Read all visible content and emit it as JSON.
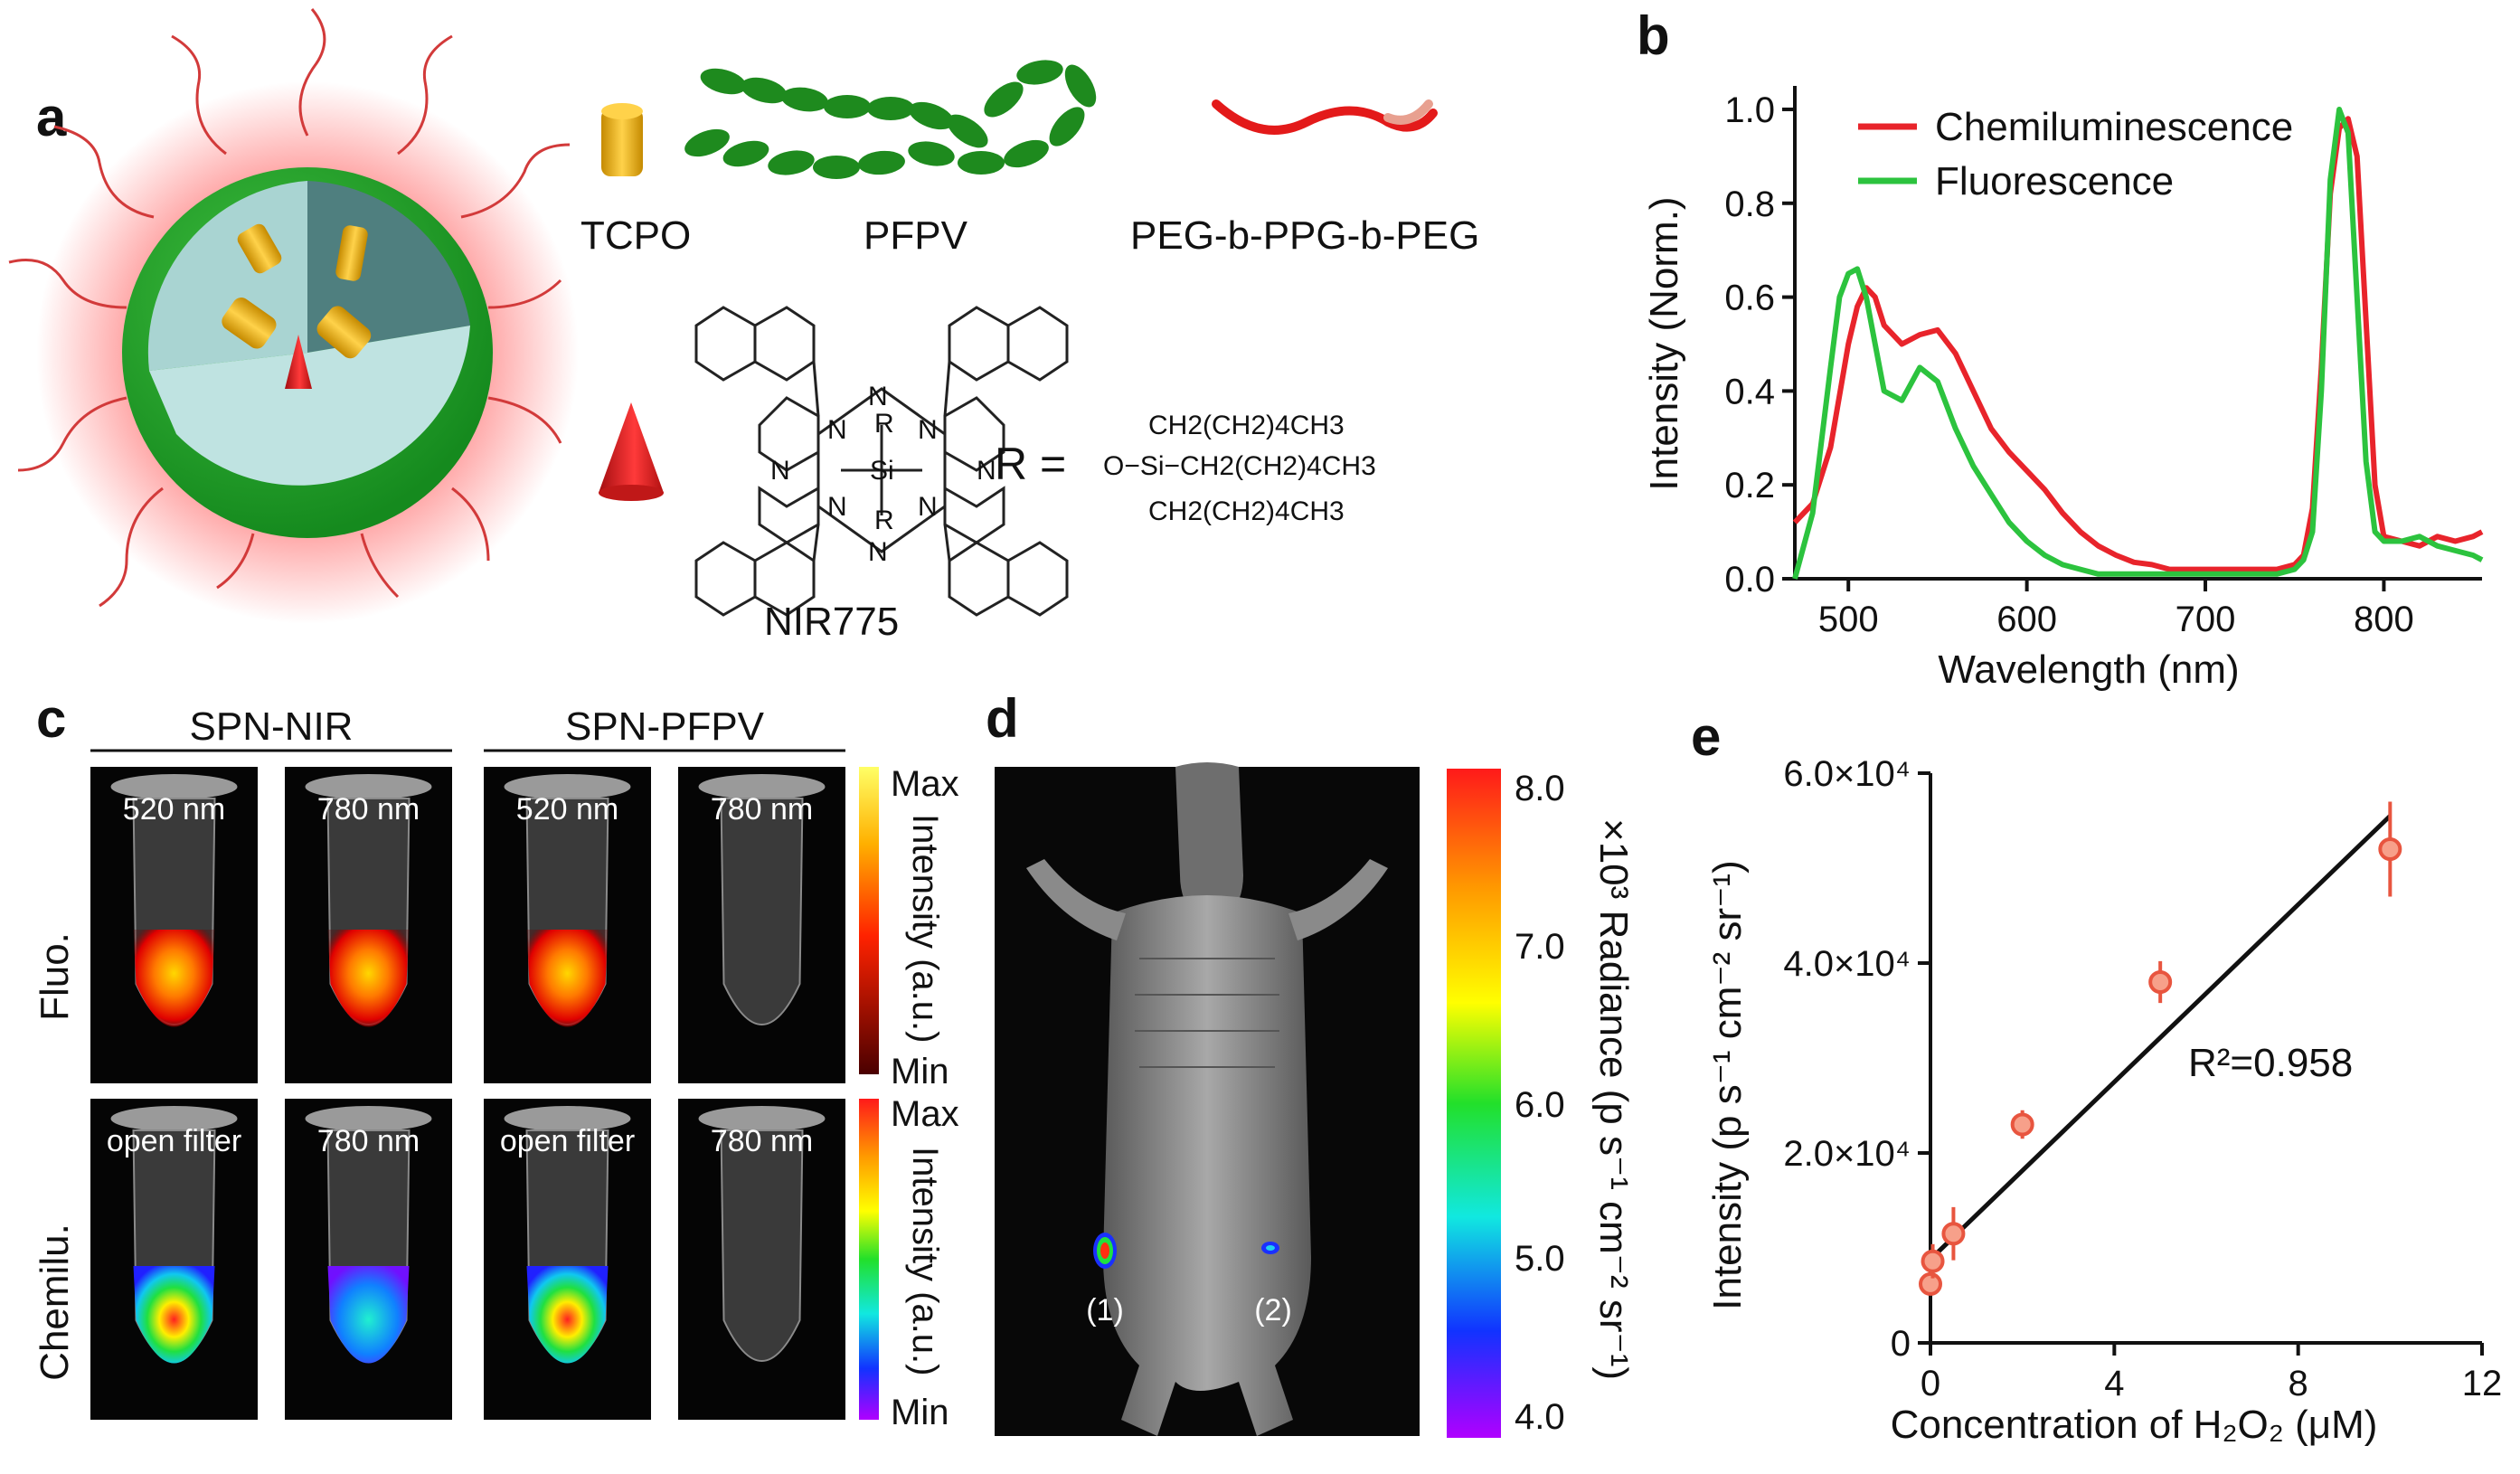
{
  "panels": {
    "a": {
      "letter": "a",
      "components": [
        "TCPO",
        "PFPV",
        "PEG-b-PPG-b-PEG"
      ],
      "dye": "NIR775",
      "r_eq": "R =",
      "r_lines": [
        "CH2(CH2)4CH3",
        "O−Si−CH2(CH2)4CH3",
        "CH2(CH2)4CH3"
      ],
      "atoms": {
        "n": "N",
        "si": "Si",
        "r": "R"
      }
    },
    "c": {
      "letter": "c",
      "groups": [
        "SPN-NIR",
        "SPN-PFPV"
      ],
      "row_labels": [
        "Fluo.",
        "Chemilu."
      ],
      "top_labels": [
        "520 nm",
        "780 nm",
        "520 nm",
        "780 nm"
      ],
      "bottom_labels": [
        "open filter",
        "780 nm",
        "open filter",
        "780 nm"
      ],
      "scale_max": "Max",
      "scale_min": "Min",
      "scale_title": "Intensity (a.u.)"
    },
    "d": {
      "letter": "d",
      "spots": [
        "(1)",
        "(2)"
      ],
      "ticks": [
        "8.0",
        "7.0",
        "6.0",
        "5.0",
        "4.0"
      ],
      "unit_label": "×10³ Radiance (p s⁻¹ cm⁻² sr⁻¹)"
    }
  },
  "chart_data": [
    {
      "panel": "b",
      "letter": "b",
      "type": "line",
      "title": "",
      "xlabel": "Wavelength (nm)",
      "ylabel": "Intensity (Norm.)",
      "xlim": [
        470,
        855
      ],
      "ylim": [
        0,
        1.05
      ],
      "xticks": [
        500,
        600,
        700,
        800
      ],
      "yticks": [
        0.0,
        0.2,
        0.4,
        0.6,
        0.8,
        1.0
      ],
      "legend": "top-left",
      "series": [
        {
          "name": "Chemiluminescence",
          "color": "#e8242b",
          "x": [
            470,
            480,
            490,
            500,
            505,
            510,
            515,
            520,
            530,
            540,
            550,
            560,
            570,
            580,
            590,
            600,
            610,
            620,
            630,
            640,
            650,
            660,
            670,
            680,
            690,
            700,
            710,
            720,
            730,
            740,
            750,
            755,
            760,
            765,
            770,
            775,
            780,
            785,
            790,
            795,
            800,
            810,
            820,
            830,
            840,
            850,
            855
          ],
          "y": [
            0.12,
            0.16,
            0.28,
            0.5,
            0.58,
            0.62,
            0.6,
            0.54,
            0.5,
            0.52,
            0.53,
            0.48,
            0.4,
            0.32,
            0.27,
            0.23,
            0.19,
            0.14,
            0.1,
            0.07,
            0.05,
            0.035,
            0.03,
            0.02,
            0.02,
            0.02,
            0.02,
            0.02,
            0.02,
            0.02,
            0.03,
            0.05,
            0.15,
            0.45,
            0.82,
            0.96,
            0.98,
            0.9,
            0.55,
            0.2,
            0.09,
            0.08,
            0.07,
            0.09,
            0.08,
            0.09,
            0.1
          ]
        },
        {
          "name": "Fluorescence",
          "color": "#2cc33e",
          "x": [
            470,
            480,
            490,
            495,
            500,
            505,
            510,
            515,
            520,
            530,
            540,
            550,
            560,
            570,
            580,
            590,
            600,
            610,
            620,
            630,
            640,
            650,
            660,
            670,
            680,
            690,
            700,
            710,
            720,
            730,
            740,
            750,
            755,
            760,
            765,
            770,
            775,
            780,
            785,
            790,
            795,
            800,
            810,
            820,
            830,
            840,
            850,
            855
          ],
          "y": [
            0.0,
            0.14,
            0.45,
            0.6,
            0.65,
            0.66,
            0.6,
            0.5,
            0.4,
            0.38,
            0.45,
            0.42,
            0.32,
            0.24,
            0.18,
            0.12,
            0.08,
            0.05,
            0.03,
            0.02,
            0.01,
            0.01,
            0.01,
            0.01,
            0.01,
            0.01,
            0.01,
            0.01,
            0.01,
            0.01,
            0.01,
            0.02,
            0.04,
            0.1,
            0.4,
            0.85,
            1.0,
            0.95,
            0.6,
            0.25,
            0.1,
            0.08,
            0.08,
            0.09,
            0.07,
            0.06,
            0.05,
            0.04
          ]
        }
      ]
    },
    {
      "panel": "e",
      "letter": "e",
      "type": "scatter",
      "title": "",
      "xlabel": "Concentration of H₂O₂ (μM)",
      "ylabel": "Intensity (p s⁻¹ cm⁻² sr⁻¹)",
      "xlim": [
        0,
        12
      ],
      "ylim": [
        0,
        60000
      ],
      "xticks": [
        0,
        4,
        8,
        12
      ],
      "yticks": [
        0,
        20000,
        40000,
        60000
      ],
      "ytick_labels": [
        "0",
        "2.0×10⁴",
        "4.0×10⁴",
        "6.0×10⁴"
      ],
      "annotation": "R²=0.958",
      "points": [
        {
          "x": 0,
          "y": 6200,
          "err": 1200
        },
        {
          "x": 0.05,
          "y": 8600,
          "err": 1800
        },
        {
          "x": 0.5,
          "y": 11500,
          "err": 2800
        },
        {
          "x": 2,
          "y": 23000,
          "err": 1500
        },
        {
          "x": 5,
          "y": 38000,
          "err": 2200
        },
        {
          "x": 10,
          "y": 52000,
          "err": 5000
        }
      ],
      "fit": {
        "x": [
          0,
          10
        ],
        "y": [
          8800,
          55500
        ]
      },
      "marker_color": "#e8553f"
    }
  ]
}
